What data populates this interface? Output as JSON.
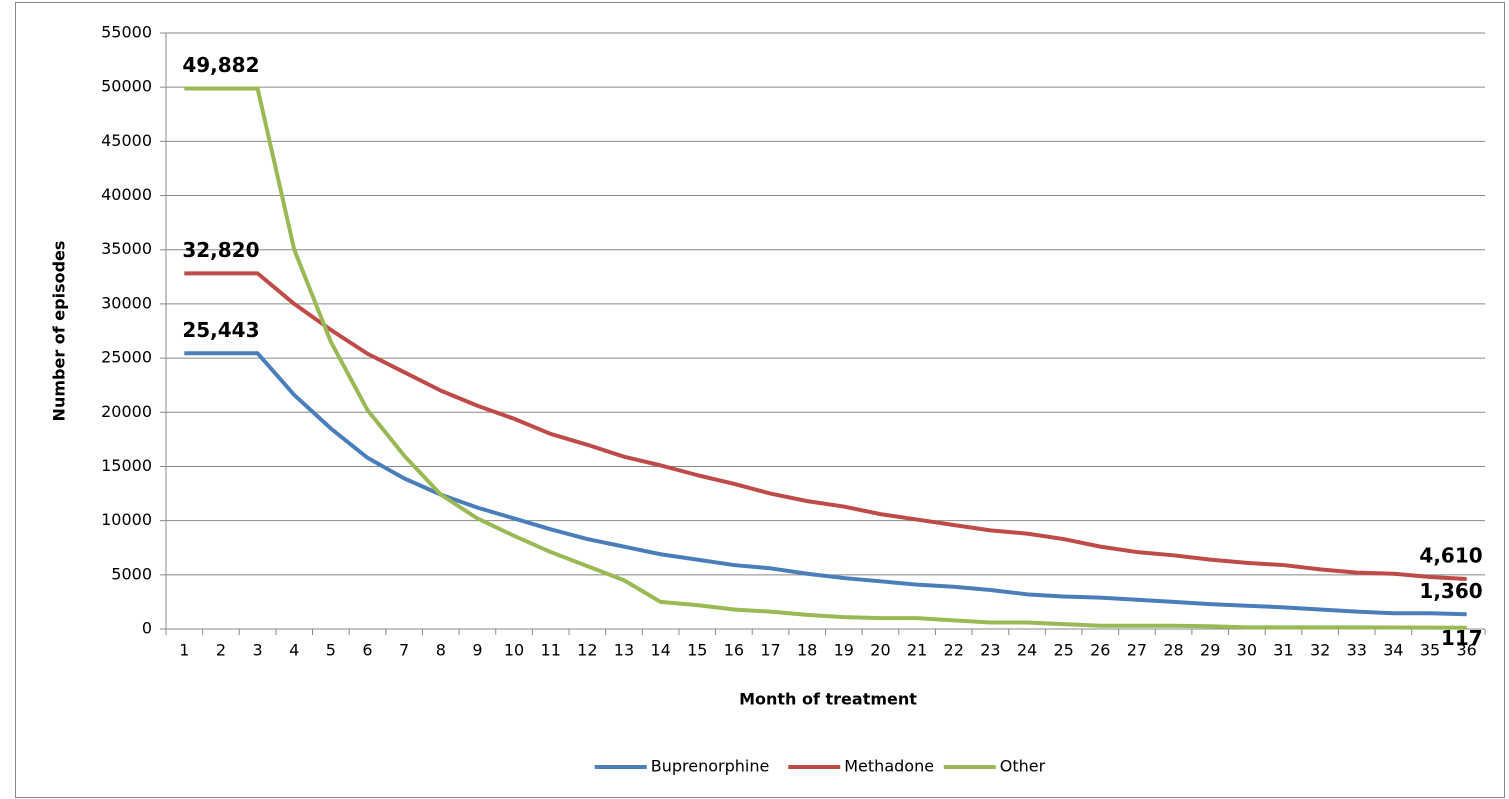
{
  "chart_data": {
    "type": "line",
    "x_label": "Month of treatment",
    "y_label": "Number of episodes",
    "categories": [
      1,
      2,
      3,
      4,
      5,
      6,
      7,
      8,
      9,
      10,
      11,
      12,
      13,
      14,
      15,
      16,
      17,
      18,
      19,
      20,
      21,
      22,
      23,
      24,
      25,
      26,
      27,
      28,
      29,
      30,
      31,
      32,
      33,
      34,
      35,
      36
    ],
    "series": [
      {
        "name": "Buprenorphine",
        "color": "#4a7ebb",
        "values": [
          25443,
          25443,
          25443,
          21600,
          18500,
          15800,
          13900,
          12400,
          11200,
          10200,
          9200,
          8300,
          7600,
          6900,
          6400,
          5900,
          5600,
          5100,
          4700,
          4400,
          4100,
          3900,
          3600,
          3200,
          3000,
          2900,
          2700,
          2500,
          2300,
          2150,
          2000,
          1800,
          1600,
          1450,
          1450,
          1360
        ],
        "value_labels": [
          "25,443",
          null,
          null,
          null,
          null,
          null,
          null,
          null,
          null,
          null,
          null,
          null,
          null,
          null,
          null,
          null,
          null,
          null,
          null,
          null,
          null,
          null,
          null,
          null,
          null,
          null,
          null,
          null,
          null,
          null,
          null,
          null,
          null,
          null,
          null,
          "1,360"
        ]
      },
      {
        "name": "Methadone",
        "color": "#be4b48",
        "values": [
          32820,
          32820,
          32820,
          30000,
          27600,
          25400,
          23700,
          22000,
          20600,
          19400,
          18000,
          17000,
          15900,
          15100,
          14200,
          13400,
          12500,
          11800,
          11300,
          10600,
          10100,
          9600,
          9100,
          8800,
          8300,
          7600,
          7100,
          6800,
          6400,
          6100,
          5900,
          5500,
          5200,
          5100,
          4800,
          4610
        ],
        "value_labels": [
          "32,820",
          null,
          null,
          null,
          null,
          null,
          null,
          null,
          null,
          null,
          null,
          null,
          null,
          null,
          null,
          null,
          null,
          null,
          null,
          null,
          null,
          null,
          null,
          null,
          null,
          null,
          null,
          null,
          null,
          null,
          null,
          null,
          null,
          null,
          null,
          "4,610"
        ]
      },
      {
        "name": "Other",
        "color": "#98b954",
        "values": [
          49882,
          49882,
          49882,
          35000,
          26500,
          20200,
          16000,
          12400,
          10200,
          8600,
          7100,
          5800,
          4500,
          2500,
          2200,
          1800,
          1600,
          1300,
          1100,
          1000,
          1000,
          800,
          600,
          600,
          450,
          300,
          300,
          300,
          250,
          150,
          150,
          150,
          150,
          140,
          130,
          117
        ],
        "value_labels": [
          "49,882",
          null,
          null,
          null,
          null,
          null,
          null,
          null,
          null,
          null,
          null,
          null,
          null,
          null,
          null,
          null,
          null,
          null,
          null,
          null,
          null,
          null,
          null,
          null,
          null,
          null,
          null,
          null,
          null,
          null,
          null,
          null,
          null,
          null,
          null,
          "117"
        ]
      }
    ],
    "ylim": [
      0,
      55000
    ],
    "yticks": [
      0,
      5000,
      10000,
      15000,
      20000,
      25000,
      30000,
      35000,
      40000,
      45000,
      50000,
      55000
    ],
    "grid": true,
    "legend": "bottom"
  }
}
